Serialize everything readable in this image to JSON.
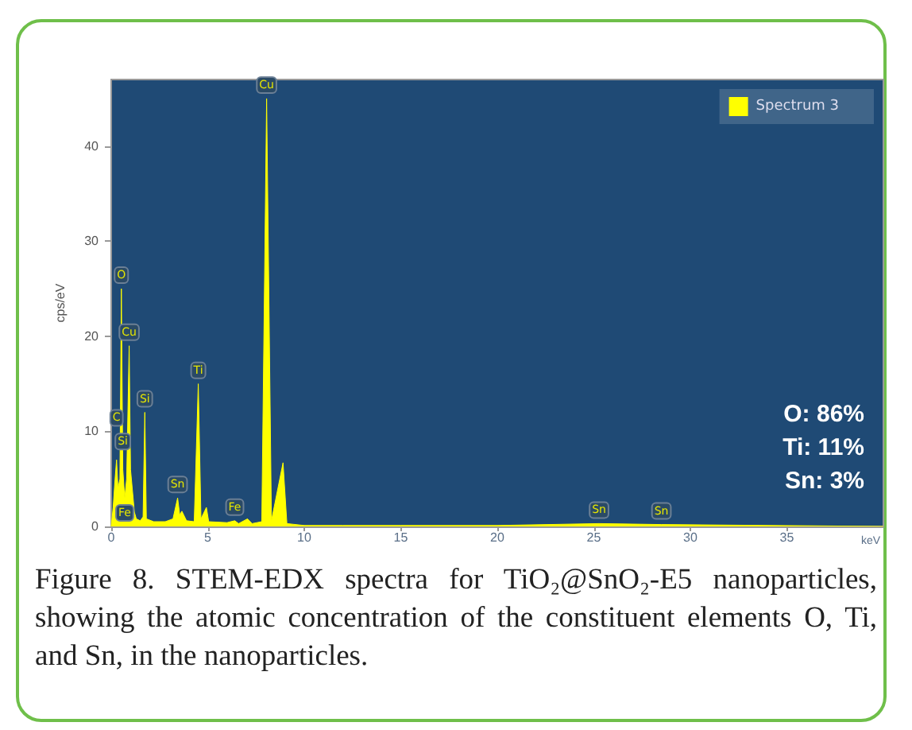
{
  "chart_data": {
    "type": "area",
    "xlabel": "keV",
    "ylabel": "cps/eV",
    "x": [
      0,
      0.1,
      0.2,
      0.277,
      0.35,
      0.45,
      0.525,
      0.6,
      0.7,
      0.8,
      0.93,
      1.0,
      1.2,
      1.3,
      1.5,
      1.65,
      1.74,
      1.82,
      2.2,
      2.8,
      3.2,
      3.44,
      3.55,
      3.66,
      3.9,
      4.3,
      4.51,
      4.65,
      4.93,
      5.05,
      6.0,
      6.4,
      6.6,
      7.06,
      7.3,
      7.8,
      8.05,
      8.3,
      8.9,
      9.1,
      10,
      12,
      15,
      20,
      25.27,
      28.5,
      40
    ],
    "series": [
      {
        "name": "Spectrum 3",
        "color": "#ffff00",
        "values": [
          0,
          2,
          5,
          7,
          4,
          5,
          25,
          6,
          3,
          5,
          19,
          6,
          1.5,
          0.8,
          0.6,
          1,
          12,
          0.8,
          0.5,
          0.5,
          0.8,
          3,
          1.2,
          1.6,
          0.6,
          0.5,
          15,
          0.8,
          2,
          0.5,
          0.4,
          0.6,
          0.3,
          0.8,
          0.3,
          0.5,
          45,
          0.6,
          6.7,
          0.3,
          0.1,
          0.1,
          0.1,
          0.1,
          0.3,
          0.2,
          0
        ]
      }
    ],
    "xlim": [
      0,
      40
    ],
    "xticks": [
      0,
      5,
      10,
      15,
      20,
      25,
      30,
      35
    ],
    "ylim": [
      0,
      47
    ],
    "yticks": [
      0,
      10,
      20,
      30,
      40
    ],
    "grid": false,
    "legend": "top right",
    "marker": "none",
    "annotations": [
      {
        "text": "C",
        "x": 0.277,
        "y": 10
      },
      {
        "text": "Si",
        "x": 0.6,
        "y": 7.5
      },
      {
        "text": "Fe",
        "x": 0.7,
        "y": 0
      },
      {
        "text": "O",
        "x": 0.525,
        "y": 25
      },
      {
        "text": "Cu",
        "x": 0.93,
        "y": 19
      },
      {
        "text": "Si",
        "x": 1.74,
        "y": 12
      },
      {
        "text": "Sn",
        "x": 3.44,
        "y": 3
      },
      {
        "text": "Ti",
        "x": 4.51,
        "y": 15
      },
      {
        "text": "Fe",
        "x": 6.4,
        "y": 0.6
      },
      {
        "text": "Cu",
        "x": 8.05,
        "y": 45
      },
      {
        "text": "Sn",
        "x": 25.27,
        "y": 0.3
      },
      {
        "text": "Sn",
        "x": 28.5,
        "y": 0.2
      },
      "O: 86%",
      "Ti: 11%",
      "Sn: 3%",
      "Figure 8.  STEM-EDX spectra for TiO₂@SnO₂-E5 nanoparticles, showing the atomic concentration of the constituent elements O, Ti, and Sn, in the nanoparticles."
    ]
  }
}
